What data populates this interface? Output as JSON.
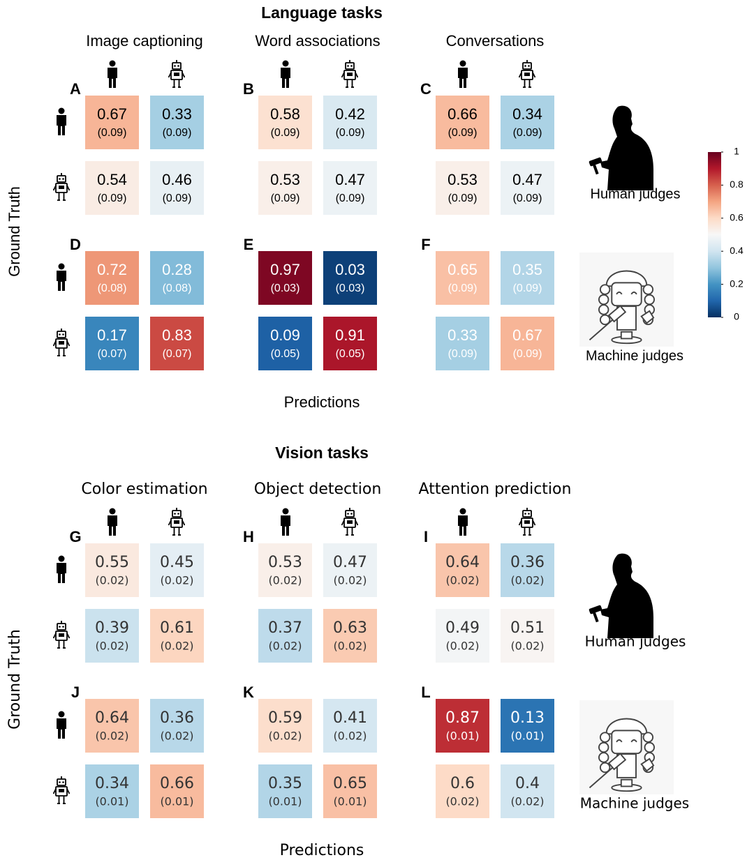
{
  "sections": [
    {
      "title": "Language tasks",
      "tasks": [
        "Image captioning",
        "Word associations",
        "Conversations"
      ],
      "xlabel": "Predictions",
      "ylabel": "Ground Truth",
      "judges": [
        "Human judges",
        "Machine judges"
      ]
    },
    {
      "title": "Vision tasks",
      "tasks": [
        "Color estimation",
        "Object detection",
        "Attention prediction"
      ],
      "xlabel": "Predictions",
      "ylabel": "Ground Truth",
      "judges": [
        "Human judges",
        "Machine judges"
      ]
    }
  ],
  "chart_data": [
    {
      "type": "heatmap",
      "label": "A",
      "values": [
        [
          0.67,
          0.33
        ],
        [
          0.54,
          0.46
        ]
      ],
      "error_labels": [
        [
          "(0.09)",
          "(0.09)"
        ],
        [
          "(0.09)",
          "(0.09)"
        ]
      ],
      "text_colors": [
        "#000",
        "#000"
      ]
    },
    {
      "type": "heatmap",
      "label": "B",
      "values": [
        [
          0.58,
          0.42
        ],
        [
          0.53,
          0.47
        ]
      ],
      "error_labels": [
        [
          "(0.09)",
          "(0.09)"
        ],
        [
          "(0.09)",
          "(0.09)"
        ]
      ],
      "text_colors": [
        "#000",
        "#000"
      ]
    },
    {
      "type": "heatmap",
      "label": "C",
      "values": [
        [
          0.66,
          0.34
        ],
        [
          0.53,
          0.47
        ]
      ],
      "error_labels": [
        [
          "(0.09)",
          "(0.09)"
        ],
        [
          "(0.09)",
          "(0.09)"
        ]
      ],
      "text_colors": [
        "#000",
        "#000"
      ]
    },
    {
      "type": "heatmap",
      "label": "D",
      "values": [
        [
          0.72,
          0.28
        ],
        [
          0.17,
          0.83
        ]
      ],
      "error_labels": [
        [
          "(0.08)",
          "(0.08)"
        ],
        [
          "(0.07)",
          "(0.07)"
        ]
      ],
      "text_colors": [
        "#fff",
        "#fff"
      ]
    },
    {
      "type": "heatmap",
      "label": "E",
      "values": [
        [
          0.97,
          0.03
        ],
        [
          0.09,
          0.91
        ]
      ],
      "error_labels": [
        [
          "(0.03)",
          "(0.03)"
        ],
        [
          "(0.05)",
          "(0.05)"
        ]
      ],
      "text_colors": [
        "#fff",
        "#fff"
      ]
    },
    {
      "type": "heatmap",
      "label": "F",
      "values": [
        [
          0.65,
          0.35
        ],
        [
          0.33,
          0.67
        ]
      ],
      "error_labels": [
        [
          "(0.09)",
          "(0.09)"
        ],
        [
          "(0.09)",
          "(0.09)"
        ]
      ],
      "text_colors": [
        "#fff",
        "#fff"
      ]
    },
    {
      "type": "heatmap",
      "label": "G",
      "values": [
        [
          0.55,
          0.45
        ],
        [
          0.39,
          0.61
        ]
      ],
      "error_labels": [
        [
          "(0.02)",
          "(0.02)"
        ],
        [
          "(0.02)",
          "(0.02)"
        ]
      ],
      "text_colors": [
        "#333",
        "#333"
      ]
    },
    {
      "type": "heatmap",
      "label": "H",
      "values": [
        [
          0.53,
          0.47
        ],
        [
          0.37,
          0.63
        ]
      ],
      "error_labels": [
        [
          "(0.02)",
          "(0.02)"
        ],
        [
          "(0.02)",
          "(0.02)"
        ]
      ],
      "text_colors": [
        "#333",
        "#333"
      ]
    },
    {
      "type": "heatmap",
      "label": "I",
      "values": [
        [
          0.64,
          0.36
        ],
        [
          0.49,
          0.51
        ]
      ],
      "error_labels": [
        [
          "(0.02)",
          "(0.02)"
        ],
        [
          "(0.02)",
          "(0.02)"
        ]
      ],
      "text_colors": [
        "#333",
        "#333"
      ]
    },
    {
      "type": "heatmap",
      "label": "J",
      "values": [
        [
          0.64,
          0.36
        ],
        [
          0.34,
          0.66
        ]
      ],
      "error_labels": [
        [
          "(0.02)",
          "(0.02)"
        ],
        [
          "(0.01)",
          "(0.01)"
        ]
      ],
      "text_colors": [
        "#333",
        "#333"
      ]
    },
    {
      "type": "heatmap",
      "label": "K",
      "values": [
        [
          0.59,
          0.41
        ],
        [
          0.35,
          0.65
        ]
      ],
      "error_labels": [
        [
          "(0.02)",
          "(0.02)"
        ],
        [
          "(0.01)",
          "(0.01)"
        ]
      ],
      "text_colors": [
        "#333",
        "#333"
      ]
    },
    {
      "type": "heatmap",
      "label": "L",
      "values": [
        [
          0.87,
          0.13
        ],
        [
          0.6,
          0.4
        ]
      ],
      "error_labels": [
        [
          "(0.01)",
          "(0.01)"
        ],
        [
          "(0.02)",
          "(0.02)"
        ]
      ],
      "text_colors": [
        "#fff",
        "#333"
      ]
    }
  ],
  "colorbar": {
    "ylim": [
      0,
      1
    ],
    "yticks": [
      0,
      0.2,
      0.4,
      0.6,
      0.8,
      1
    ],
    "colormap": "RdBu_r"
  }
}
